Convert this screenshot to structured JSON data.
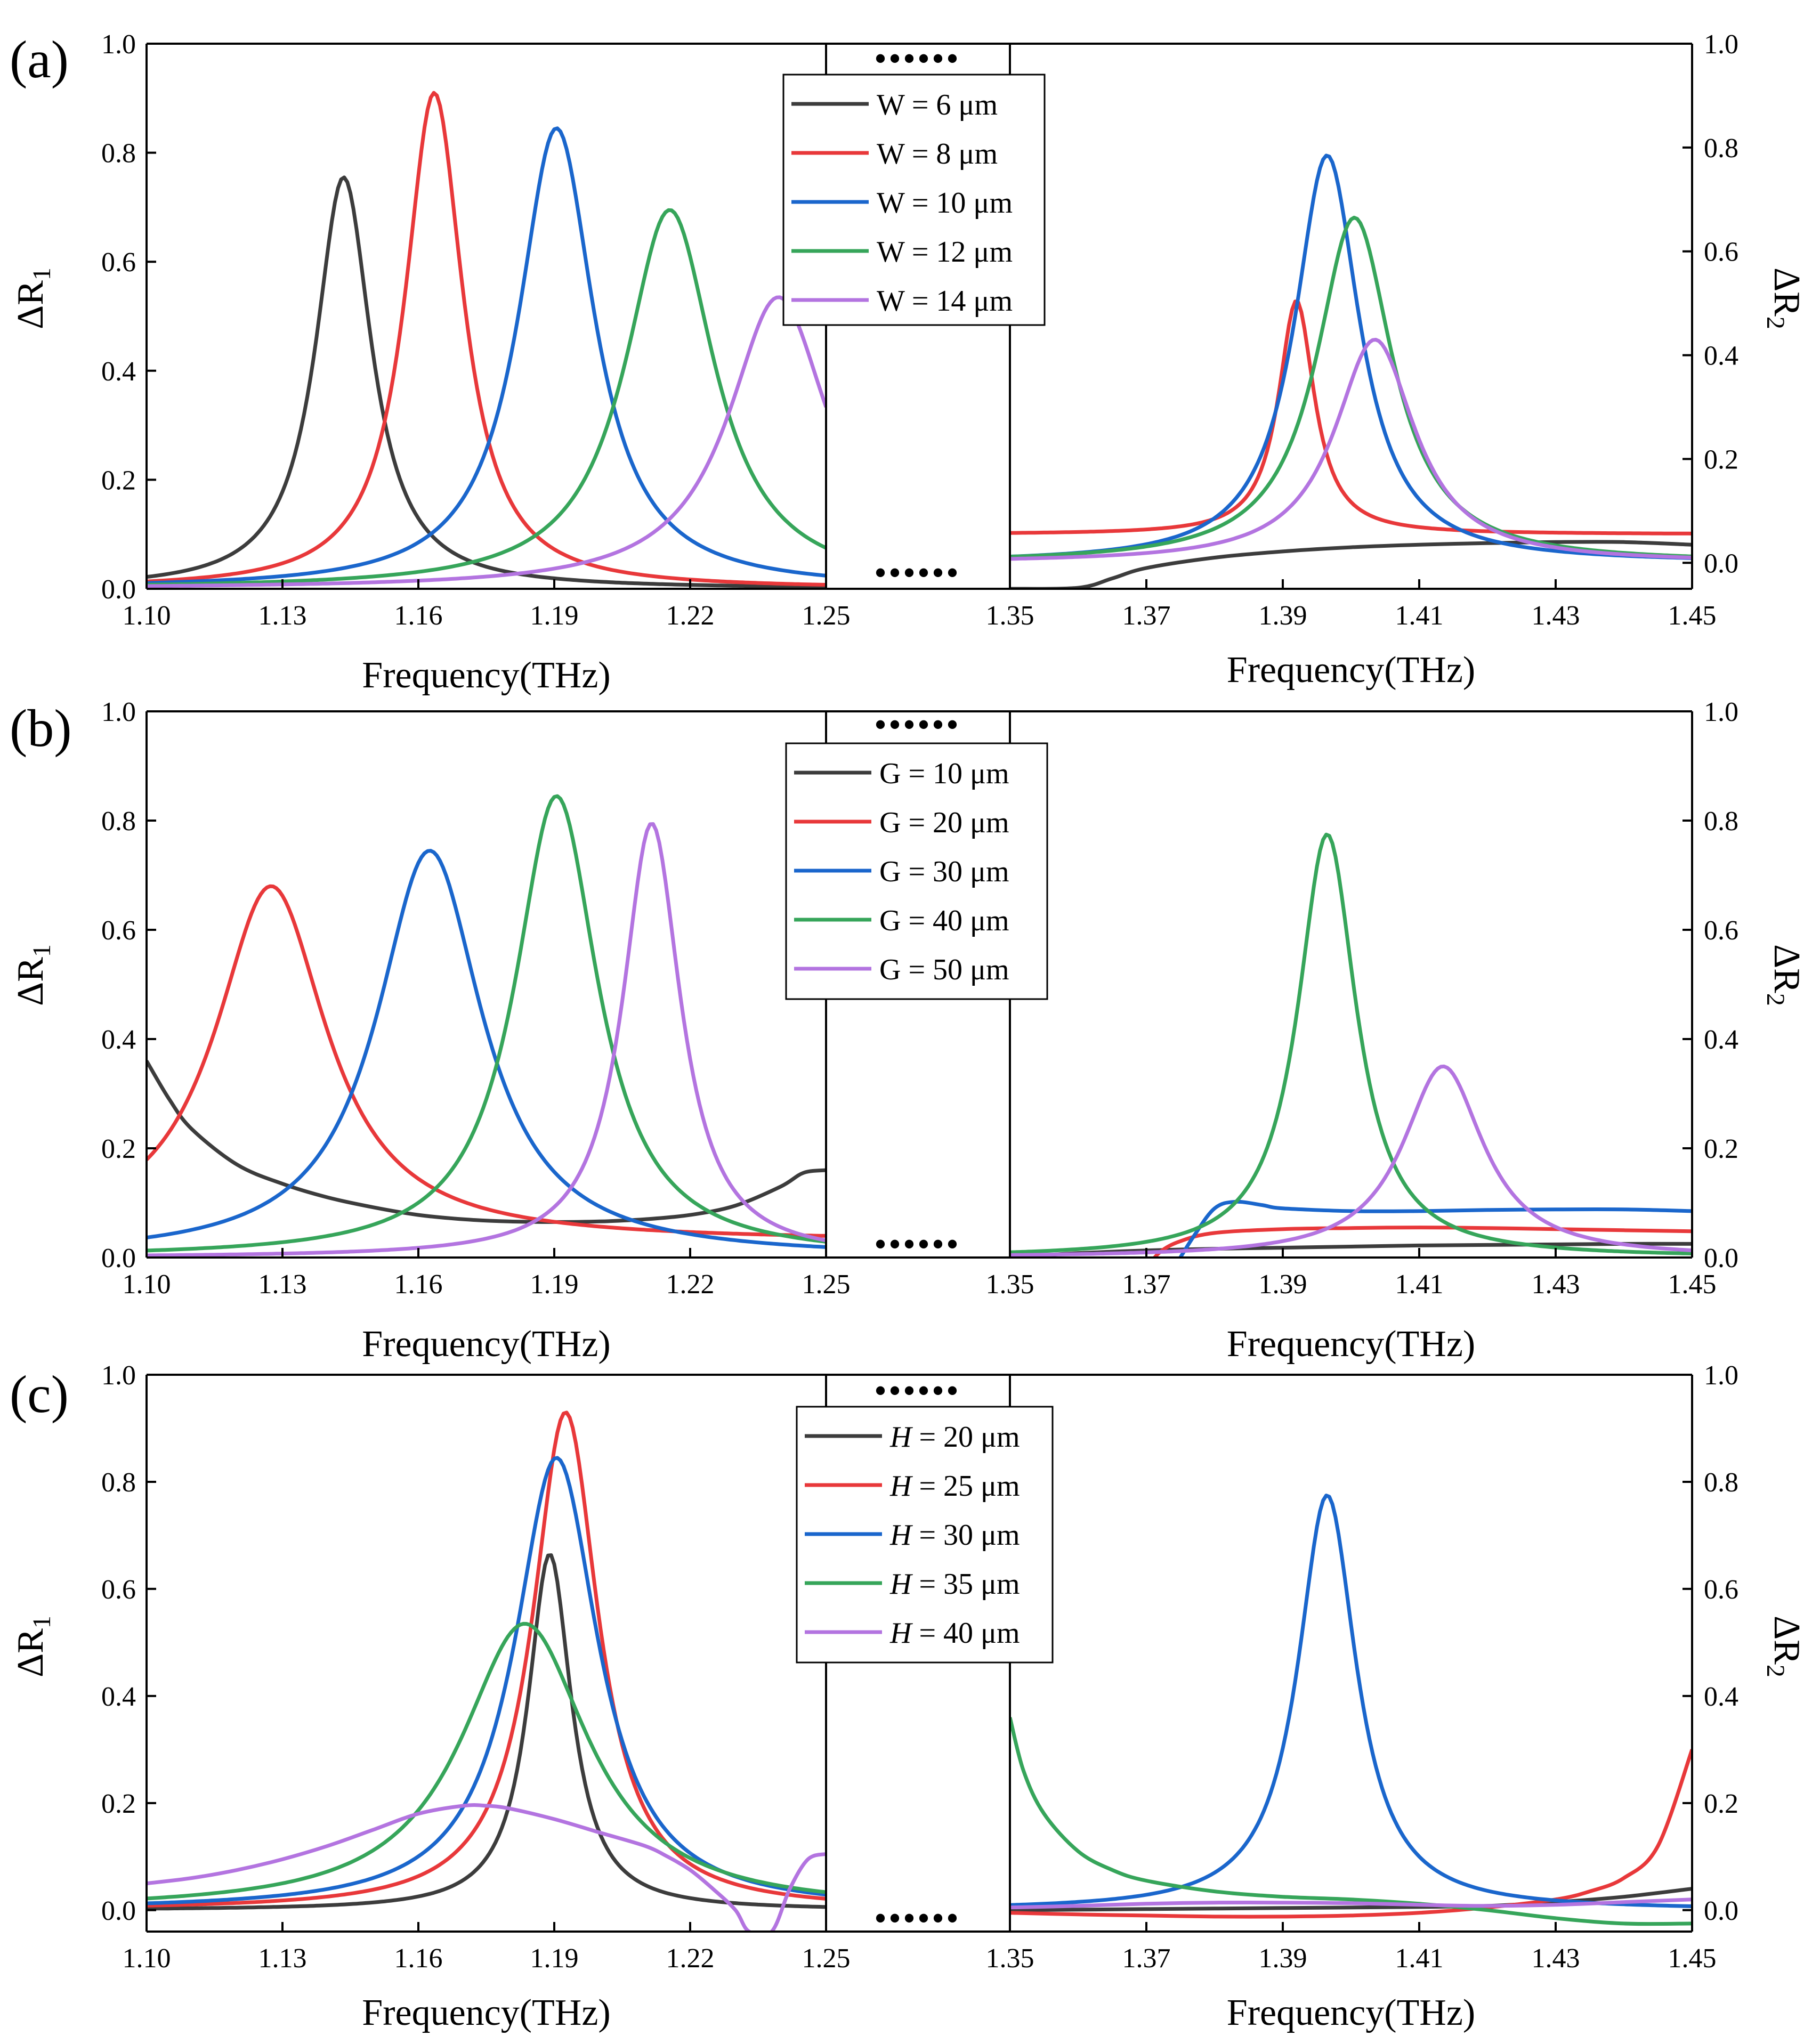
{
  "figure": {
    "colors": {
      "gray": "#3c3c3c",
      "red": "#e8383a",
      "blue": "#1a66cc",
      "green": "#36a55a",
      "purple": "#b374e0"
    },
    "break_marker": "••••••"
  },
  "chart_data": [
    {
      "type": "line",
      "panel_label": "(a)",
      "xlabel": "Frequency(THz)",
      "ylabel_left": "ΔR1",
      "ylabel_right": "ΔR2",
      "x_ticks_left": [
        "1.10",
        "1.13",
        "1.16",
        "1.19",
        "1.22",
        "1.25"
      ],
      "x_ticks_right": [
        "1.35",
        "1.37",
        "1.39",
        "1.41",
        "1.43",
        "1.45"
      ],
      "y_ticks_left": [
        "0.0",
        "0.2",
        "0.4",
        "0.6",
        "0.8",
        "1.0"
      ],
      "y_ticks_right": [
        "0.0",
        "0.2",
        "0.4",
        "0.6",
        "0.8",
        "1.0"
      ],
      "xlim_left": [
        1.1,
        1.25
      ],
      "xlim_right": [
        1.35,
        1.45
      ],
      "ylim_left": [
        0,
        1.0
      ],
      "ylim_right": [
        -0.05,
        1.0
      ],
      "series": [
        {
          "name": "W = 6 μm",
          "color": "gray",
          "left": {
            "f0": 1.1435,
            "peak": 0.755,
            "width": 0.0075,
            "base": 0.0
          },
          "right": [
            [
              1.35,
              -0.05
            ],
            [
              1.36,
              -0.048
            ],
            [
              1.365,
              -0.03
            ],
            [
              1.37,
              -0.01
            ],
            [
              1.38,
              0.01
            ],
            [
              1.39,
              0.022
            ],
            [
              1.4,
              0.03
            ],
            [
              1.41,
              0.035
            ],
            [
              1.42,
              0.038
            ],
            [
              1.43,
              0.04
            ],
            [
              1.44,
              0.04
            ],
            [
              1.45,
              0.035
            ]
          ]
        },
        {
          "name": "W = 8 μm",
          "color": "red",
          "left": {
            "f0": 1.1635,
            "peak": 0.91,
            "width": 0.0078,
            "base": 0.0
          },
          "right": {
            "f0": 1.392,
            "peak": 0.45,
            "width": 0.0032,
            "base": 0.055
          }
        },
        {
          "name": "W = 10 μm",
          "color": "blue",
          "left": {
            "f0": 1.1905,
            "peak": 0.845,
            "width": 0.0102,
            "base": 0.0
          },
          "right": {
            "f0": 1.3965,
            "peak": 0.785,
            "width": 0.0058,
            "base": 0.0
          }
        },
        {
          "name": "W = 12 μm",
          "color": "green",
          "left": {
            "f0": 1.2155,
            "peak": 0.695,
            "width": 0.012,
            "base": 0.0
          },
          "right": {
            "f0": 1.4005,
            "peak": 0.665,
            "width": 0.0068,
            "base": 0.0
          }
        },
        {
          "name": "W = 14 μm",
          "color": "purple",
          "left": {
            "f0": 1.2395,
            "peak": 0.535,
            "width": 0.0135,
            "base": 0.0
          },
          "right": {
            "f0": 1.4035,
            "peak": 0.43,
            "width": 0.0072,
            "base": 0.0
          }
        }
      ],
      "legend": {
        "entries": [
          "W = 6 μm",
          "W = 8 μm",
          "W = 10 μm",
          "W = 12 μm",
          "W = 14 μm"
        ],
        "placement": "top-center"
      }
    },
    {
      "type": "line",
      "panel_label": "(b)",
      "xlabel": "Frequency(THz)",
      "ylabel_left": "ΔR1",
      "ylabel_right": "ΔR2",
      "x_ticks_left": [
        "1.10",
        "1.13",
        "1.16",
        "1.19",
        "1.22",
        "1.25"
      ],
      "x_ticks_right": [
        "1.35",
        "1.37",
        "1.39",
        "1.41",
        "1.43",
        "1.45"
      ],
      "y_ticks_left": [
        "0.0",
        "0.2",
        "0.4",
        "0.6",
        "0.8",
        "1.0"
      ],
      "y_ticks_right": [
        "0.0",
        "0.2",
        "0.4",
        "0.6",
        "0.8",
        "1.0"
      ],
      "xlim_left": [
        1.1,
        1.25
      ],
      "xlim_right": [
        1.35,
        1.45
      ],
      "ylim_left": [
        0,
        1.0
      ],
      "ylim_right": [
        0,
        1.0
      ],
      "series": [
        {
          "name": "G = 10 μm",
          "color": "gray",
          "left": [
            [
              1.1,
              0.36
            ],
            [
              1.105,
              0.29
            ],
            [
              1.11,
              0.235
            ],
            [
              1.12,
              0.17
            ],
            [
              1.13,
              0.135
            ],
            [
              1.14,
              0.11
            ],
            [
              1.15,
              0.092
            ],
            [
              1.16,
              0.078
            ],
            [
              1.17,
              0.07
            ],
            [
              1.18,
              0.066
            ],
            [
              1.19,
              0.065
            ],
            [
              1.2,
              0.066
            ],
            [
              1.21,
              0.07
            ],
            [
              1.22,
              0.078
            ],
            [
              1.23,
              0.095
            ],
            [
              1.24,
              0.13
            ],
            [
              1.245,
              0.155
            ],
            [
              1.25,
              0.16
            ]
          ],
          "right": [
            [
              1.35,
              0.0
            ],
            [
              1.355,
              0.004
            ],
            [
              1.36,
              0.008
            ],
            [
              1.37,
              0.013
            ],
            [
              1.38,
              0.016
            ],
            [
              1.39,
              0.018
            ],
            [
              1.4,
              0.02
            ],
            [
              1.41,
              0.022
            ],
            [
              1.42,
              0.023
            ],
            [
              1.43,
              0.024
            ],
            [
              1.44,
              0.025
            ],
            [
              1.45,
              0.025
            ]
          ]
        },
        {
          "name": "G = 20 μm",
          "color": "red",
          "left": {
            "f0": 1.1275,
            "peak": 0.65,
            "width": 0.015,
            "base": 0.03
          },
          "right": [
            [
              1.37,
              -0.02
            ],
            [
              1.372,
              0.01
            ],
            [
              1.375,
              0.03
            ],
            [
              1.38,
              0.045
            ],
            [
              1.39,
              0.052
            ],
            [
              1.4,
              0.054
            ],
            [
              1.41,
              0.055
            ],
            [
              1.42,
              0.054
            ],
            [
              1.43,
              0.052
            ],
            [
              1.44,
              0.05
            ],
            [
              1.45,
              0.048
            ]
          ]
        },
        {
          "name": "G = 30 μm",
          "color": "blue",
          "left": {
            "f0": 1.1625,
            "peak": 0.745,
            "width": 0.0142,
            "base": 0.0
          },
          "right": [
            [
              1.374,
              -0.02
            ],
            [
              1.377,
              0.04
            ],
            [
              1.38,
              0.09
            ],
            [
              1.383,
              0.102
            ],
            [
              1.387,
              0.096
            ],
            [
              1.39,
              0.09
            ],
            [
              1.4,
              0.085
            ],
            [
              1.41,
              0.085
            ],
            [
              1.42,
              0.087
            ],
            [
              1.43,
              0.088
            ],
            [
              1.44,
              0.088
            ],
            [
              1.45,
              0.085
            ]
          ]
        },
        {
          "name": "G = 40 μm",
          "color": "green",
          "left": {
            "f0": 1.1905,
            "peak": 0.845,
            "width": 0.0112,
            "base": 0.0
          },
          "right": {
            "f0": 1.3965,
            "peak": 0.775,
            "width": 0.0052,
            "base": 0.0
          }
        },
        {
          "name": "G = 50 μm",
          "color": "purple",
          "left": {
            "f0": 1.2115,
            "peak": 0.795,
            "width": 0.0078,
            "base": 0.0
          },
          "right": {
            "f0": 1.4135,
            "peak": 0.35,
            "width": 0.0072,
            "base": 0.0
          }
        }
      ],
      "legend": {
        "entries": [
          "G = 10 μm",
          "G = 20 μm",
          "G = 30 μm",
          "G = 40 μm",
          "G = 50 μm"
        ],
        "placement": "top-center"
      }
    },
    {
      "type": "line",
      "panel_label": "(c)",
      "xlabel": "Frequency(THz)",
      "ylabel_left": "ΔR1",
      "ylabel_right": "ΔR2",
      "x_ticks_left": [
        "1.10",
        "1.13",
        "1.16",
        "1.19",
        "1.22",
        "1.25"
      ],
      "x_ticks_right": [
        "1.35",
        "1.37",
        "1.39",
        "1.41",
        "1.43",
        "1.45"
      ],
      "y_ticks_left": [
        "0.0",
        "0.2",
        "0.4",
        "0.6",
        "0.8",
        "1.0"
      ],
      "y_ticks_right": [
        "0.0",
        "0.2",
        "0.4",
        "0.6",
        "0.8",
        "1.0"
      ],
      "xlim_left": [
        1.1,
        1.25
      ],
      "xlim_right": [
        1.35,
        1.45
      ],
      "ylim_left": [
        -0.04,
        1.0
      ],
      "ylim_right": [
        -0.04,
        1.0
      ],
      "series": [
        {
          "name": "H = 20 μm",
          "name_var": "H",
          "name_rest": " = 20 μm",
          "color": "gray",
          "left": {
            "f0": 1.189,
            "peak": 0.665,
            "width": 0.0058,
            "base": 0.0
          },
          "right": [
            [
              1.35,
              0.0
            ],
            [
              1.37,
              0.002
            ],
            [
              1.39,
              0.004
            ],
            [
              1.41,
              0.006
            ],
            [
              1.42,
              0.008
            ],
            [
              1.43,
              0.015
            ],
            [
              1.44,
              0.025
            ],
            [
              1.45,
              0.04
            ]
          ]
        },
        {
          "name": "H = 25 μm",
          "name_var": "H",
          "name_rest": " = 25 μm",
          "color": "red",
          "left": {
            "f0": 1.1925,
            "peak": 0.93,
            "width": 0.0088,
            "base": 0.0
          },
          "right": [
            [
              1.35,
              -0.005
            ],
            [
              1.36,
              -0.008
            ],
            [
              1.37,
              -0.01
            ],
            [
              1.38,
              -0.012
            ],
            [
              1.39,
              -0.012
            ],
            [
              1.4,
              -0.01
            ],
            [
              1.41,
              -0.005
            ],
            [
              1.42,
              0.005
            ],
            [
              1.43,
              0.02
            ],
            [
              1.435,
              0.035
            ],
            [
              1.44,
              0.06
            ],
            [
              1.445,
              0.12
            ],
            [
              1.45,
              0.3
            ]
          ]
        },
        {
          "name": "H = 30 μm",
          "name_var": "H",
          "name_rest": " = 30 μm",
          "color": "blue",
          "left": {
            "f0": 1.1905,
            "peak": 0.845,
            "width": 0.0112,
            "base": 0.0
          },
          "right": {
            "f0": 1.3965,
            "peak": 0.775,
            "width": 0.0052,
            "base": 0.0
          }
        },
        {
          "name": "H = 35 μm",
          "name_var": "H",
          "name_rest": " = 35 μm",
          "color": "green",
          "left": {
            "f0": 1.1835,
            "peak": 0.535,
            "width": 0.0172,
            "base": 0.0
          },
          "right": [
            [
              1.35,
              0.36
            ],
            [
              1.352,
              0.26
            ],
            [
              1.355,
              0.18
            ],
            [
              1.36,
              0.11
            ],
            [
              1.365,
              0.075
            ],
            [
              1.37,
              0.055
            ],
            [
              1.38,
              0.035
            ],
            [
              1.39,
              0.025
            ],
            [
              1.4,
              0.02
            ],
            [
              1.41,
              0.012
            ],
            [
              1.42,
              0.0
            ],
            [
              1.43,
              -0.015
            ],
            [
              1.44,
              -0.025
            ],
            [
              1.45,
              -0.025
            ]
          ]
        },
        {
          "name": "H = 40 μm",
          "name_var": "H",
          "name_rest": " = 40 μm",
          "color": "purple",
          "left": [
            [
              1.1,
              0.05
            ],
            [
              1.11,
              0.06
            ],
            [
              1.12,
              0.075
            ],
            [
              1.13,
              0.095
            ],
            [
              1.14,
              0.12
            ],
            [
              1.15,
              0.15
            ],
            [
              1.16,
              0.18
            ],
            [
              1.17,
              0.195
            ],
            [
              1.175,
              0.195
            ],
            [
              1.18,
              0.19
            ],
            [
              1.19,
              0.17
            ],
            [
              1.2,
              0.145
            ],
            [
              1.21,
              0.12
            ],
            [
              1.215,
              0.1
            ],
            [
              1.22,
              0.075
            ],
            [
              1.225,
              0.04
            ],
            [
              1.23,
              0.0
            ],
            [
              1.233,
              -0.04
            ],
            [
              1.238,
              -0.04
            ],
            [
              1.242,
              0.04
            ],
            [
              1.246,
              0.095
            ],
            [
              1.25,
              0.105
            ]
          ],
          "right": [
            [
              1.35,
              0.005
            ],
            [
              1.36,
              0.008
            ],
            [
              1.37,
              0.012
            ],
            [
              1.38,
              0.014
            ],
            [
              1.39,
              0.014
            ],
            [
              1.4,
              0.013
            ],
            [
              1.41,
              0.01
            ],
            [
              1.42,
              0.008
            ],
            [
              1.43,
              0.01
            ],
            [
              1.44,
              0.015
            ],
            [
              1.45,
              0.02
            ]
          ]
        }
      ],
      "legend": {
        "entries": [
          "H = 20 μm",
          "H = 25 μm",
          "H = 30 μm",
          "H = 35 μm",
          "H = 40 μm"
        ],
        "placement": "top-center"
      }
    }
  ]
}
